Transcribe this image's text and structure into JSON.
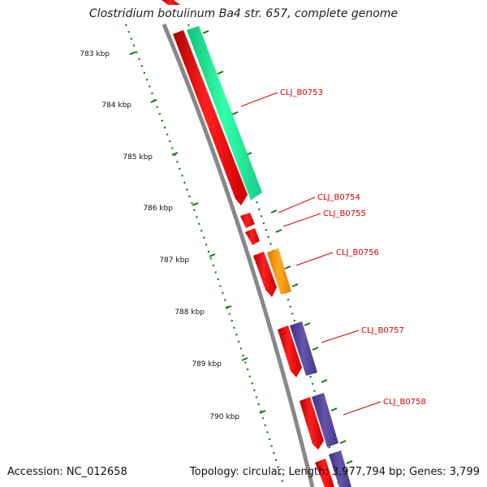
{
  "title": "Clostridium botulinum Ba4 str. 657, complete genome",
  "footer": {
    "accession": "Accession: NC_012658",
    "summary": "Topology: circular; Length: 3,977,794 bp; Genes: 3,799"
  },
  "scale": {
    "ticks": [
      {
        "label": "783 kbp"
      },
      {
        "label": "784 kbp"
      },
      {
        "label": "785 kbp"
      },
      {
        "label": "786 kbp"
      },
      {
        "label": "787 kbp"
      },
      {
        "label": "788 kbp"
      },
      {
        "label": "789 kbp"
      },
      {
        "label": "790 kbp"
      }
    ]
  },
  "genes": [
    {
      "label": "CLJ_B0753"
    },
    {
      "label": "CLJ_B0754"
    },
    {
      "label": "CLJ_B0755"
    },
    {
      "label": "CLJ_B0756"
    },
    {
      "label": "CLJ_B0757"
    },
    {
      "label": "CLJ_B0758"
    }
  ],
  "colors": {
    "forward_gene": "#ff0000",
    "cog_green": "#22ee9a",
    "cog_orange": "#ff9900",
    "cog_purple": "#554499",
    "backbone": "#888888",
    "gc_ticks": "#117711",
    "label_red": "#d40000"
  }
}
